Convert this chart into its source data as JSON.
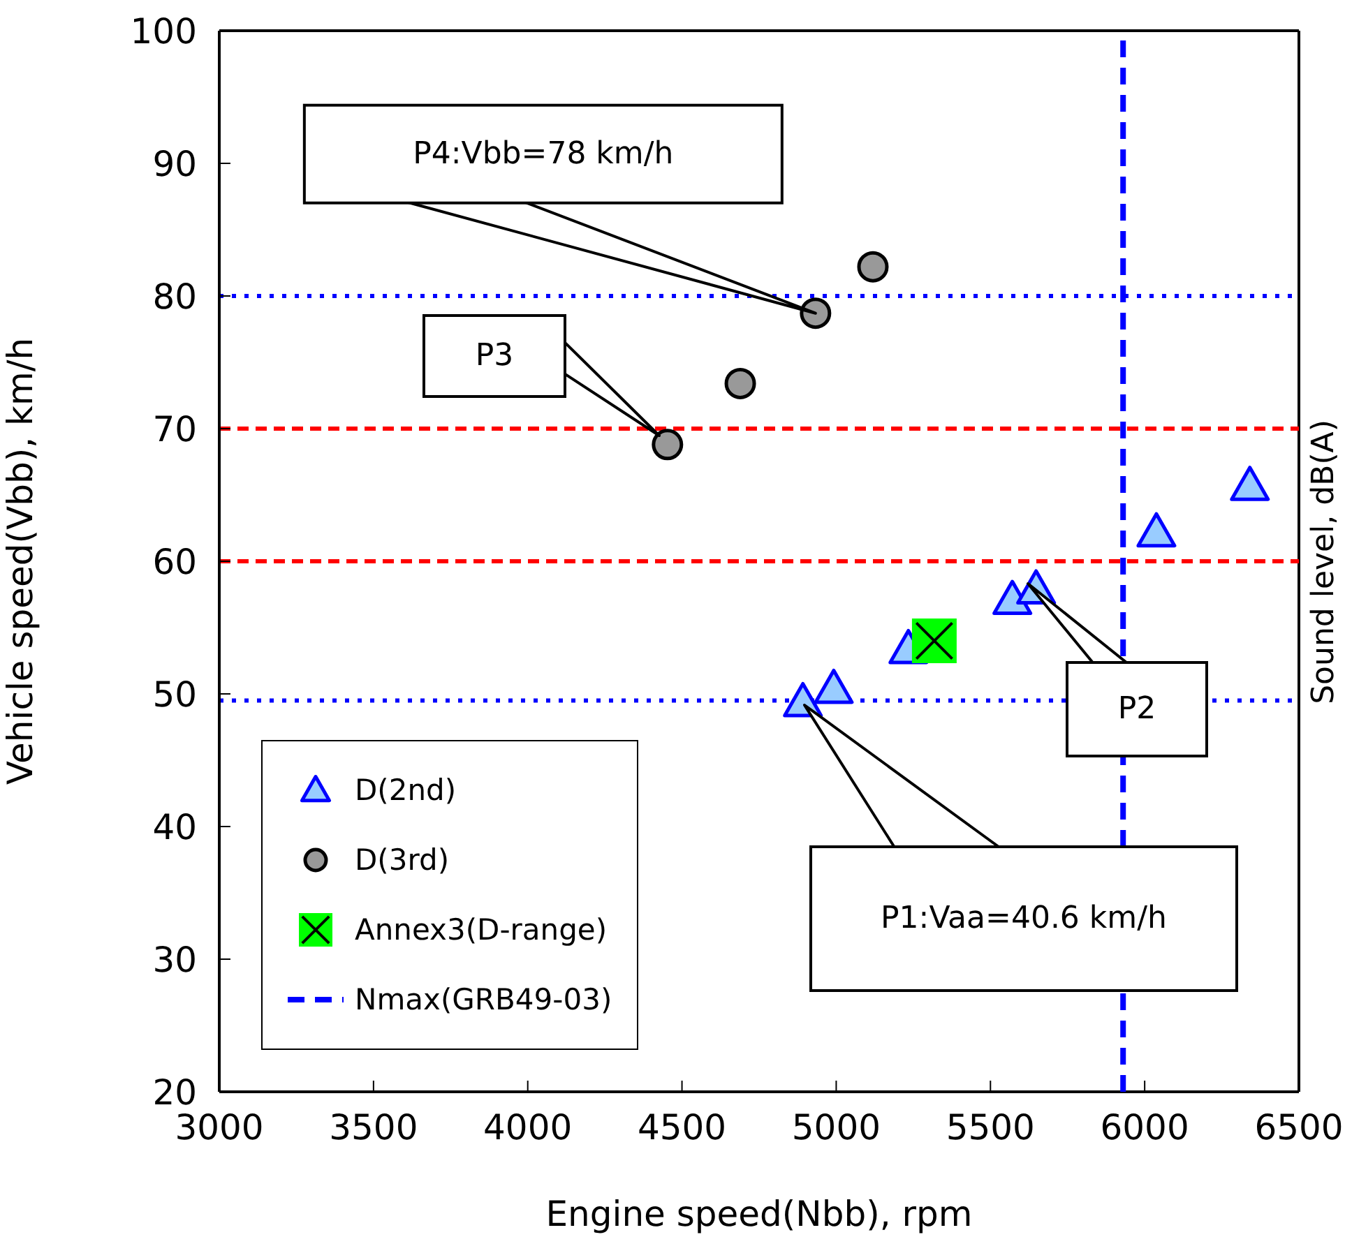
{
  "chart_data": {
    "type": "scatter",
    "xlabel": "Engine speed(Nbb), rpm",
    "ylabel": "Vehicle speed(Vbb), km/h",
    "y2label": "Sound level, dB(A)",
    "xlim": [
      3000,
      6500
    ],
    "xticks": [
      3000,
      3500,
      4000,
      4500,
      5000,
      5500,
      6000,
      6500
    ],
    "ylim": [
      20,
      100
    ],
    "yticks": [
      20,
      30,
      40,
      50,
      60,
      70,
      80,
      90,
      100
    ],
    "legend": "bottom left",
    "series": [
      {
        "name": "D(2nd)",
        "color": "#99ccff",
        "marker": "triangle",
        "x": [
          4892,
          4992,
          5234,
          5571,
          5648,
          6038,
          6341
        ],
        "values": [
          49.4,
          50.4,
          53.4,
          57.1,
          57.9,
          62.2,
          65.7
        ]
      },
      {
        "name": "D(3rd)",
        "color": "#999999",
        "marker": "circle",
        "x": [
          4453,
          4689,
          4933,
          5119
        ],
        "values": [
          68.8,
          73.4,
          78.7,
          82.2
        ]
      },
      {
        "name": "Annex3(D-range)",
        "color": "#00ff00",
        "marker": "square",
        "x": [
          5318
        ],
        "values": [
          54.0
        ]
      },
      {
        "name": "Nmax(GRB49-03)",
        "type": "line",
        "color": "#0000ff",
        "marker": "none",
        "line_style": "dashed",
        "x": [
          5930,
          5930
        ],
        "values": [
          20,
          100
        ]
      }
    ],
    "ref_lines": [
      {
        "axis": "y",
        "value": 80,
        "color": "#0000ff",
        "line_style": "dotted"
      },
      {
        "axis": "y",
        "value": 49.5,
        "color": "#0000ff",
        "line_style": "dotted"
      },
      {
        "axis": "y",
        "value": 70,
        "color": "#ff0000",
        "line_style": "dashed"
      },
      {
        "axis": "y",
        "value": 60,
        "color": "#ff0000",
        "line_style": "dashed"
      }
    ],
    "annotations": [
      {
        "text": "P4:Vbb=78 km/h",
        "x": 4933,
        "y": 78.7
      },
      "P3",
      "P2",
      "P1:Vaa=40.6 km/h"
    ]
  }
}
